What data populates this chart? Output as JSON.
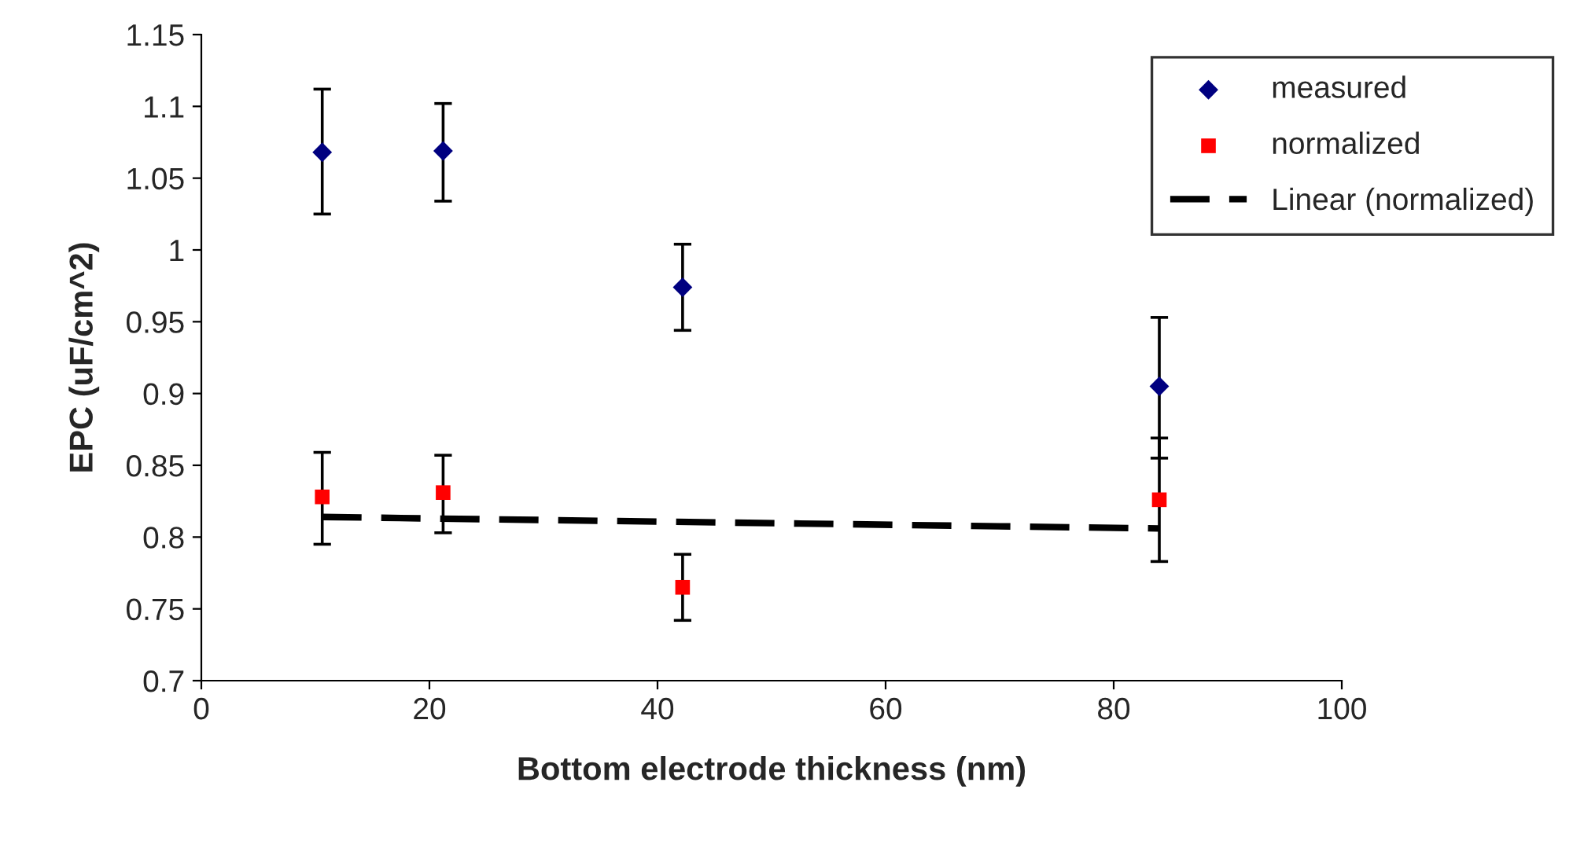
{
  "chart_data": {
    "type": "scatter",
    "xlabel": "Bottom electrode thickness (nm)",
    "ylabel": "EPC (uF/cm^2)",
    "xlim": [
      0,
      100
    ],
    "xticks": [
      0,
      20,
      40,
      60,
      80,
      100
    ],
    "ylim": [
      0.7,
      1.15
    ],
    "yticks": [
      0.7,
      0.75,
      0.8,
      0.85,
      0.9,
      0.95,
      1,
      1.05,
      1.1,
      1.15
    ],
    "grid": false,
    "legend": "top right",
    "series": [
      {
        "name": "measured",
        "marker": "diamond",
        "color": "#000080",
        "x": [
          10.6,
          21.2,
          42.2,
          84
        ],
        "values": [
          1.068,
          1.069,
          0.974,
          0.905
        ],
        "errors": [
          [
            1.025,
            1.112
          ],
          [
            1.034,
            1.102
          ],
          [
            0.944,
            1.004
          ],
          [
            0.855,
            0.953
          ]
        ]
      },
      {
        "name": "normalized",
        "marker": "square",
        "color": "#ff0000",
        "x": [
          10.6,
          21.2,
          42.2,
          84
        ],
        "values": [
          0.828,
          0.831,
          0.765,
          0.826
        ],
        "errors": [
          [
            0.795,
            0.859
          ],
          [
            0.803,
            0.857
          ],
          [
            0.742,
            0.788
          ],
          [
            0.783,
            0.869
          ]
        ]
      },
      {
        "name": "Linear (normalized)",
        "type": "line",
        "line_style": "dashed",
        "marker": "none",
        "color": "#000000",
        "x": [
          10.6,
          84
        ],
        "values": [
          0.814,
          0.806
        ]
      }
    ]
  }
}
